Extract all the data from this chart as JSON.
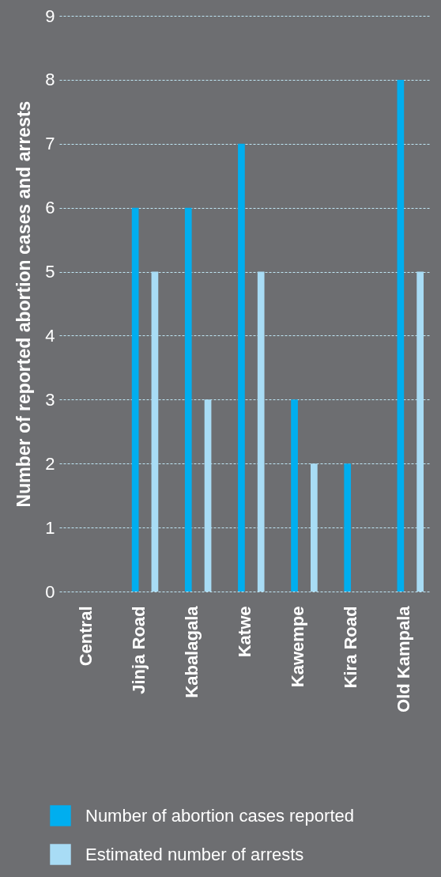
{
  "chart_data": {
    "type": "bar",
    "ylabel": "Number of reported abortion cases and arrests",
    "categories": [
      "Central",
      "Jinja Road",
      "Kabalagala",
      "Katwe",
      "Kawempe",
      "Kira Road",
      "Old Kampala"
    ],
    "series": [
      {
        "name": "Number of abortion cases reported",
        "color": "#00aeef",
        "values": [
          0,
          6,
          6,
          7,
          3,
          2,
          8
        ]
      },
      {
        "name": "Estimated number of arrests",
        "color": "#a8dcf5",
        "values": [
          0,
          5,
          3,
          5,
          2,
          0,
          5
        ]
      }
    ],
    "ylim": [
      0,
      9
    ],
    "yticks": [
      0,
      1,
      2,
      3,
      4,
      5,
      6,
      7,
      8,
      9
    ],
    "grid": "y",
    "legend": "bottom"
  }
}
